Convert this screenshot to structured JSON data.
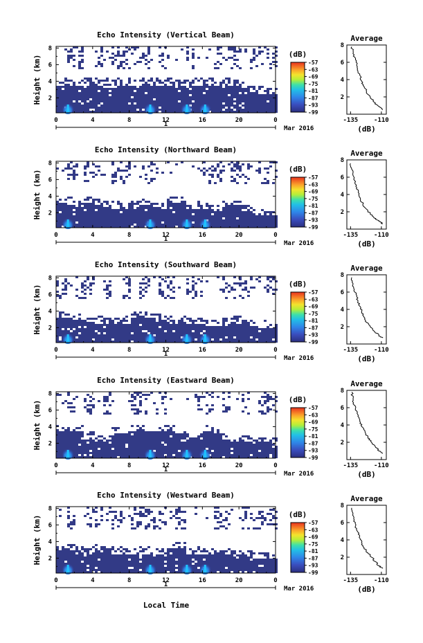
{
  "figure": {
    "xlabel": "Local Time",
    "date_label": "Mar 2016",
    "day_label": "1",
    "colorbar_label": "(dB)",
    "avg_title": "Average",
    "avg_xlabel": "(dB)",
    "ylabel": "Height (km)"
  },
  "chart_data": [
    {
      "type": "heatmap",
      "title": "Echo Intensity (Vertical Beam)",
      "ylabel": "Height (km)",
      "x_ticks": [
        "0",
        "4",
        "8",
        "12",
        "16",
        "20",
        "0"
      ],
      "y_ticks": [
        "2",
        "4",
        "6",
        "8"
      ],
      "xlim": [
        0,
        24
      ],
      "ylim": [
        0.2,
        8.2
      ],
      "colorbar": {
        "ticks": [
          "-57",
          "-63",
          "-69",
          "-75",
          "-81",
          "-87",
          "-93",
          "-99"
        ],
        "range": [
          -99,
          -57
        ]
      },
      "cloud_top_km": [
        3.4,
        3.4,
        3.3,
        3.4,
        3.4,
        3.5,
        3.4,
        3.4,
        3.3,
        3.5,
        3.4,
        3.4,
        3.4,
        3.3,
        3.4,
        3.4,
        3.4,
        3.3,
        3.4,
        3.2,
        3.0,
        2.6,
        2.4,
        2.2
      ],
      "strong_echo_hours": [
        1,
        10,
        14,
        16
      ],
      "upper_echo_hours": [
        1,
        2,
        4,
        6,
        7,
        8,
        9,
        11,
        14,
        17,
        18,
        19,
        21,
        22,
        23
      ],
      "average_profile": {
        "title": "Average",
        "xlabel": "(dB)",
        "x_ticks": [
          "-135",
          "-110"
        ],
        "y_ticks": [
          "2",
          "4",
          "6",
          "8"
        ],
        "xlim": [
          -138,
          -106
        ],
        "ylim": [
          0,
          8
        ],
        "points": [
          [
            -134,
            7.8
          ],
          [
            -133,
            7.0
          ],
          [
            -131,
            6.3
          ],
          [
            -130,
            5.6
          ],
          [
            -129,
            5.0
          ],
          [
            -127,
            4.4
          ],
          [
            -126,
            3.8
          ],
          [
            -124,
            3.2
          ],
          [
            -122,
            2.6
          ],
          [
            -119,
            2.0
          ],
          [
            -116,
            1.4
          ],
          [
            -112,
            0.9
          ],
          [
            -109,
            0.5
          ]
        ]
      }
    },
    {
      "type": "heatmap",
      "title": "Echo Intensity (Northward Beam)",
      "ylabel": "Height (km)",
      "x_ticks": [
        "0",
        "4",
        "8",
        "12",
        "16",
        "20",
        "0"
      ],
      "y_ticks": [
        "2",
        "4",
        "6",
        "8"
      ],
      "xlim": [
        0,
        24
      ],
      "ylim": [
        0.2,
        8.2
      ],
      "colorbar": {
        "ticks": [
          "-57",
          "-63",
          "-69",
          "-75",
          "-81",
          "-87",
          "-93",
          "-99"
        ],
        "range": [
          -99,
          -57
        ]
      },
      "cloud_top_km": [
        2.8,
        2.9,
        2.6,
        3.0,
        2.9,
        2.6,
        2.4,
        2.3,
        2.4,
        2.8,
        2.6,
        2.2,
        3.0,
        3.0,
        2.2,
        2.4,
        2.2,
        2.0,
        2.7,
        2.8,
        2.0,
        1.8,
        1.6,
        1.6
      ],
      "strong_echo_hours": [
        1,
        10,
        14,
        16
      ],
      "upper_echo_hours": [
        1,
        3,
        6,
        7,
        9,
        10,
        16,
        17,
        19,
        20,
        22,
        23
      ],
      "average_profile": {
        "title": "Average",
        "xlabel": "(dB)",
        "x_ticks": [
          "-135",
          "-110"
        ],
        "y_ticks": [
          "2",
          "4",
          "6",
          "8"
        ],
        "xlim": [
          -138,
          -106
        ],
        "ylim": [
          0,
          8
        ],
        "points": [
          [
            -135,
            7.6
          ],
          [
            -134,
            6.9
          ],
          [
            -133,
            6.2
          ],
          [
            -131,
            5.5
          ],
          [
            -130,
            4.8
          ],
          [
            -128,
            4.1
          ],
          [
            -127,
            3.5
          ],
          [
            -125,
            2.9
          ],
          [
            -122,
            2.3
          ],
          [
            -119,
            1.8
          ],
          [
            -116,
            1.3
          ],
          [
            -112,
            0.9
          ],
          [
            -109,
            0.6
          ]
        ]
      }
    },
    {
      "type": "heatmap",
      "title": "Echo Intensity (Southward Beam)",
      "ylabel": "Height (km)",
      "x_ticks": [
        "0",
        "4",
        "8",
        "12",
        "16",
        "20",
        "0"
      ],
      "y_ticks": [
        "2",
        "4",
        "6",
        "8"
      ],
      "xlim": [
        0,
        24
      ],
      "ylim": [
        0.2,
        8.2
      ],
      "colorbar": {
        "ticks": [
          "-57",
          "-63",
          "-69",
          "-75",
          "-81",
          "-87",
          "-93",
          "-99"
        ],
        "range": [
          -99,
          -57
        ]
      },
      "cloud_top_km": [
        3.0,
        3.0,
        2.7,
        2.5,
        2.4,
        2.3,
        2.2,
        2.4,
        3.0,
        3.0,
        2.9,
        2.7,
        2.5,
        2.4,
        2.3,
        2.2,
        2.1,
        2.0,
        2.3,
        2.4,
        2.2,
        2.0,
        1.9,
        1.8
      ],
      "strong_echo_hours": [
        1,
        10,
        14,
        16
      ],
      "upper_echo_hours": [
        0,
        2,
        3,
        5,
        7,
        9,
        11,
        12,
        14,
        15,
        18,
        19,
        20,
        23
      ],
      "average_profile": {
        "title": "Average",
        "xlabel": "(dB)",
        "x_ticks": [
          "-135",
          "-110"
        ],
        "y_ticks": [
          "2",
          "4",
          "6",
          "8"
        ],
        "xlim": [
          -138,
          -106
        ],
        "ylim": [
          0,
          8
        ],
        "points": [
          [
            -134,
            7.7
          ],
          [
            -133,
            7.0
          ],
          [
            -132,
            6.3
          ],
          [
            -130,
            5.6
          ],
          [
            -129,
            4.9
          ],
          [
            -127,
            4.3
          ],
          [
            -126,
            3.7
          ],
          [
            -124,
            3.1
          ],
          [
            -122,
            2.5
          ],
          [
            -119,
            2.0
          ],
          [
            -116,
            1.5
          ],
          [
            -112,
            1.0
          ],
          [
            -109,
            0.7
          ]
        ]
      }
    },
    {
      "type": "heatmap",
      "title": "Echo Intensity (Eastward Beam)",
      "ylabel": "Height (km)",
      "x_ticks": [
        "0",
        "4",
        "8",
        "12",
        "16",
        "20",
        "0"
      ],
      "y_ticks": [
        "2",
        "4",
        "6",
        "8"
      ],
      "xlim": [
        0,
        24
      ],
      "ylim": [
        0.2,
        8.2
      ],
      "colorbar": {
        "ticks": [
          "-57",
          "-63",
          "-69",
          "-75",
          "-81",
          "-87",
          "-93",
          "-99"
        ],
        "range": [
          -99,
          -57
        ]
      },
      "cloud_top_km": [
        3.2,
        3.3,
        3.2,
        2.4,
        2.2,
        2.0,
        2.9,
        3.0,
        3.2,
        3.3,
        3.3,
        3.3,
        3.3,
        3.0,
        2.2,
        2.4,
        3.2,
        3.0,
        2.2,
        2.1,
        2.0,
        1.9,
        1.8,
        1.8
      ],
      "strong_echo_hours": [
        1,
        10,
        14,
        16
      ],
      "upper_echo_hours": [
        1,
        3,
        5,
        8,
        9,
        10,
        11,
        15,
        16,
        18,
        20,
        22,
        23
      ],
      "average_profile": {
        "title": "Average",
        "xlabel": "(dB)",
        "x_ticks": [
          "-135",
          "-110"
        ],
        "y_ticks": [
          "2",
          "4",
          "6",
          "8"
        ],
        "xlim": [
          -138,
          -106
        ],
        "ylim": [
          0,
          8
        ],
        "points": [
          [
            -134,
            7.8
          ],
          [
            -133,
            7.0
          ],
          [
            -132,
            6.3
          ],
          [
            -130,
            5.6
          ],
          [
            -129,
            5.0
          ],
          [
            -127,
            4.3
          ],
          [
            -125,
            3.7
          ],
          [
            -123,
            3.1
          ],
          [
            -121,
            2.5
          ],
          [
            -118,
            2.0
          ],
          [
            -115,
            1.5
          ],
          [
            -112,
            1.0
          ],
          [
            -109,
            0.7
          ]
        ]
      }
    },
    {
      "type": "heatmap",
      "title": "Echo Intensity (Westward Beam)",
      "ylabel": "Height (km)",
      "x_ticks": [
        "0",
        "4",
        "8",
        "12",
        "16",
        "20",
        "0"
      ],
      "y_ticks": [
        "2",
        "4",
        "6",
        "8"
      ],
      "xlim": [
        0,
        24
      ],
      "ylim": [
        0.2,
        8.2
      ],
      "colorbar": {
        "ticks": [
          "-57",
          "-63",
          "-69",
          "-75",
          "-81",
          "-87",
          "-93",
          "-99"
        ],
        "range": [
          -99,
          -57
        ]
      },
      "cloud_top_km": [
        2.8,
        2.7,
        2.5,
        2.4,
        2.9,
        3.0,
        2.4,
        2.3,
        2.3,
        2.4,
        2.3,
        2.2,
        3.0,
        3.0,
        2.2,
        2.4,
        2.2,
        2.0,
        2.2,
        2.1,
        2.0,
        1.9,
        1.8,
        1.8
      ],
      "strong_echo_hours": [
        1,
        10,
        14,
        16
      ],
      "upper_echo_hours": [
        1,
        3,
        4,
        6,
        8,
        9,
        10,
        11,
        13,
        17,
        18,
        20,
        21,
        22,
        23
      ],
      "average_profile": {
        "title": "Average",
        "xlabel": "(dB)",
        "x_ticks": [
          "-135",
          "-110"
        ],
        "y_ticks": [
          "2",
          "4",
          "6",
          "8"
        ],
        "xlim": [
          -138,
          -106
        ],
        "ylim": [
          0,
          8
        ],
        "points": [
          [
            -134,
            7.7
          ],
          [
            -133,
            7.0
          ],
          [
            -132,
            6.3
          ],
          [
            -131,
            5.6
          ],
          [
            -129,
            4.9
          ],
          [
            -128,
            4.3
          ],
          [
            -126,
            3.7
          ],
          [
            -124,
            3.1
          ],
          [
            -121,
            2.5
          ],
          [
            -118,
            2.0
          ],
          [
            -115,
            1.5
          ],
          [
            -112,
            1.0
          ],
          [
            -109,
            0.7
          ]
        ]
      }
    }
  ]
}
